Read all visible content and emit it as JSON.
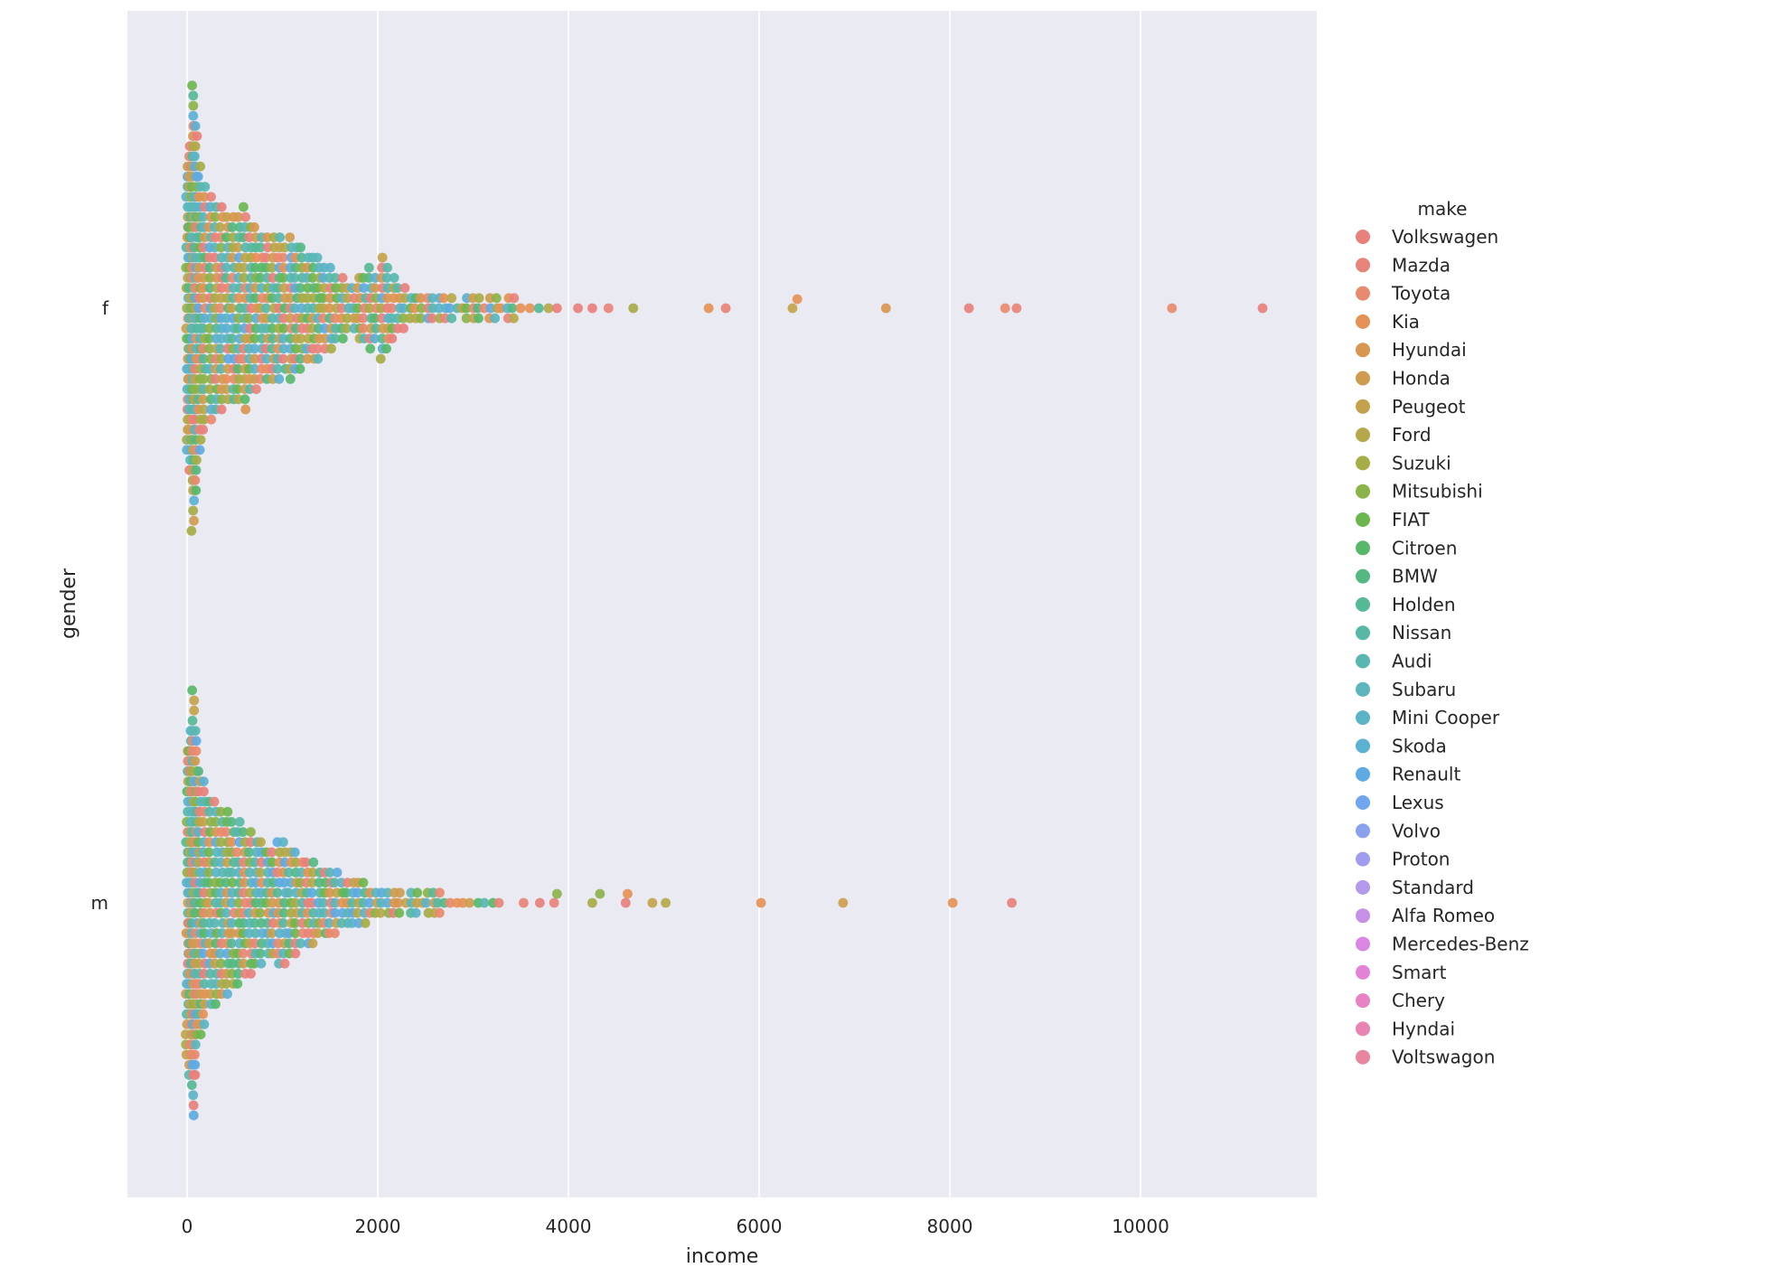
{
  "chart_data": {
    "type": "scatter",
    "subtype": "swarm",
    "title": "",
    "xlabel": "income",
    "ylabel": "gender",
    "xlim": [
      -600,
      11800
    ],
    "xticks": [
      0,
      2000,
      4000,
      6000,
      8000,
      10000
    ],
    "xtick_labels": [
      "0",
      "2000",
      "4000",
      "6000",
      "8000",
      "10000"
    ],
    "categories": [
      "f",
      "m"
    ],
    "grid": true,
    "legend": {
      "title": "make",
      "placement": "right",
      "entries": [
        {
          "label": "Volkswagen",
          "color": "#e8807c"
        },
        {
          "label": "Mazda",
          "color": "#e8837a"
        },
        {
          "label": "Toyota",
          "color": "#e88a6f"
        },
        {
          "label": "Kia",
          "color": "#e59256"
        },
        {
          "label": "Hyundai",
          "color": "#d99650"
        },
        {
          "label": "Honda",
          "color": "#cf9c4f"
        },
        {
          "label": "Peugeot",
          "color": "#c4a24c"
        },
        {
          "label": "Ford",
          "color": "#b5a84a"
        },
        {
          "label": "Suzuki",
          "color": "#a6ad47"
        },
        {
          "label": "Mitsubishi",
          "color": "#8cb24a"
        },
        {
          "label": "FIAT",
          "color": "#6cb64f"
        },
        {
          "label": "Citroen",
          "color": "#58b86a"
        },
        {
          "label": "BMW",
          "color": "#55b883"
        },
        {
          "label": "Holden",
          "color": "#56b995"
        },
        {
          "label": "Nissan",
          "color": "#58b8a6"
        },
        {
          "label": "Audi",
          "color": "#59b7b1"
        },
        {
          "label": "Subaru",
          "color": "#5ab6bc"
        },
        {
          "label": "Mini Cooper",
          "color": "#5bb4c6"
        },
        {
          "label": "Skoda",
          "color": "#5cb0d2"
        },
        {
          "label": "Renault",
          "color": "#5eaae2"
        },
        {
          "label": "Lexus",
          "color": "#71a6ec"
        },
        {
          "label": "Volvo",
          "color": "#8aa2ee"
        },
        {
          "label": "Proton",
          "color": "#a09cee"
        },
        {
          "label": "Standard",
          "color": "#b398ec"
        },
        {
          "label": "Alfa Romeo",
          "color": "#c690e8"
        },
        {
          "label": "Mercedes-Benz",
          "color": "#da86e2"
        },
        {
          "label": "Smart",
          "color": "#e482d6"
        },
        {
          "label": "Chery",
          "color": "#e882c4"
        },
        {
          "label": "Hyndai",
          "color": "#e884b2"
        },
        {
          "label": "Voltswagon",
          "color": "#e886a0"
        }
      ]
    },
    "series": [
      {
        "category": "f",
        "outlier_points": [
          {
            "x": 4100,
            "make": "Volkswagen"
          },
          {
            "x": 4250,
            "make": "Volkswagen"
          },
          {
            "x": 4420,
            "make": "Mazda"
          },
          {
            "x": 4680,
            "make": "Suzuki"
          },
          {
            "x": 5470,
            "make": "Kia"
          },
          {
            "x": 5650,
            "make": "Mazda"
          },
          {
            "x": 6350,
            "make": "Peugeot"
          },
          {
            "x": 6400,
            "make": "Kia"
          },
          {
            "x": 7330,
            "make": "Hyundai"
          },
          {
            "x": 8200,
            "make": "Volkswagen"
          },
          {
            "x": 8580,
            "make": "Toyota"
          },
          {
            "x": 8700,
            "make": "Mazda"
          },
          {
            "x": 10330,
            "make": "Toyota"
          },
          {
            "x": 11280,
            "make": "Volkswagen"
          }
        ]
      },
      {
        "category": "m",
        "outlier_points": [
          {
            "x": 3530,
            "make": "Mazda"
          },
          {
            "x": 3700,
            "make": "Volkswagen"
          },
          {
            "x": 3850,
            "make": "Mazda"
          },
          {
            "x": 3880,
            "make": "Mitsubishi"
          },
          {
            "x": 4250,
            "make": "Suzuki"
          },
          {
            "x": 4330,
            "make": "Mitsubishi"
          },
          {
            "x": 4600,
            "make": "Volkswagen"
          },
          {
            "x": 4620,
            "make": "Kia"
          },
          {
            "x": 4880,
            "make": "Peugeot"
          },
          {
            "x": 5020,
            "make": "Ford"
          },
          {
            "x": 6020,
            "make": "Kia"
          },
          {
            "x": 6880,
            "make": "Honda"
          },
          {
            "x": 8030,
            "make": "Kia"
          },
          {
            "x": 8650,
            "make": "Volkswagen"
          }
        ]
      }
    ]
  }
}
